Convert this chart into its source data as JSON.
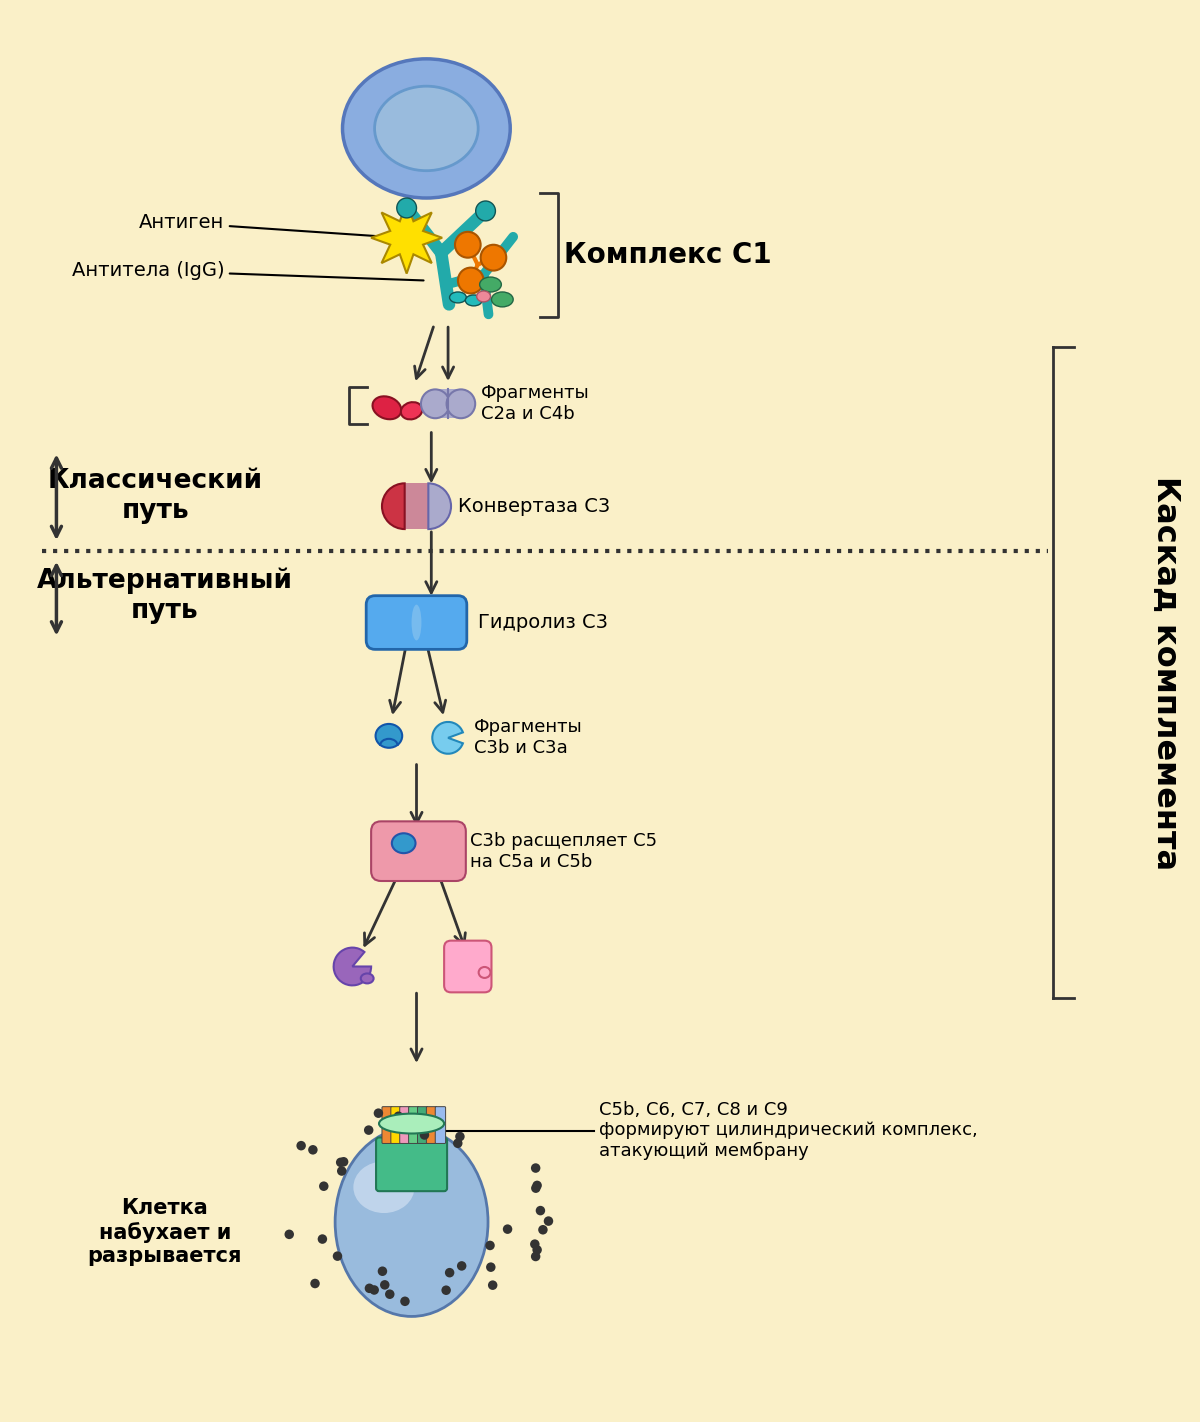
{
  "bg_color": "#FAF0C8",
  "figsize": [
    12.0,
    14.22
  ],
  "dpi": 100,
  "text_color": "#000000",
  "labels": {
    "antigen": "Антиген",
    "antibody": "Антитела (IgG)",
    "complex_c1": "Комплекс С1",
    "fragments_c2a_c4b": "Фрагменты\nС2a и С4b",
    "convertase_c3": "Конвертаза С3",
    "classical_path": "Классический\nпуть",
    "alternative_path": "Альтернативный\nпуть",
    "hydrolysis_c3": "Гидролиз С3",
    "fragments_c3b_c3a": "Фрагменты\nС3b и С3a",
    "c3b_cleaves": "С3b расщепляет С5\nна С5a и С5b",
    "cascade": "Каскад комплемента",
    "mac_label": "С5b, С6, С7, С8 и С9\nформируют цилиндрический комплекс,\nатакующий мембрану",
    "cell_label": "Клетка\nнабухает и\nразрывается"
  },
  "colors": {
    "cell_body": "#8AADE0",
    "cell_outline": "#5577BB",
    "cell_nucleus_outer": "#6699CC",
    "cell_nucleus_inner": "#99BBDD",
    "antigen_yellow": "#FFE000",
    "antibody_teal": "#22AAAA",
    "complement_orange": "#EE7700",
    "complement_teal_small": "#22BBBB",
    "complement_green": "#44AA66",
    "complement_pink": "#EE8899",
    "c2a_red": "#CC3344",
    "c4b_lavender": "#AAAACC",
    "convertase_red": "#CC3344",
    "convertase_gray": "#AAAACC",
    "hydrolysis_blue": "#55AAEE",
    "c3b_blue": "#3399CC",
    "c3a_lightblue": "#77CCEE",
    "c5a_purple": "#9966BB",
    "c5b_pink": "#FFAACC",
    "mac_green": "#44BB88",
    "dot_color": "#333333",
    "bracket_color": "#333333",
    "dotted_line_color": "#333333"
  }
}
